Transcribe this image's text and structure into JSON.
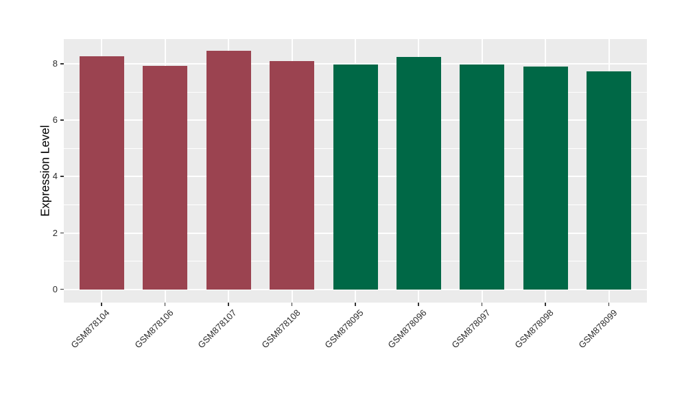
{
  "chart_data": {
    "type": "bar",
    "title": "",
    "categories": [
      "GSM878104",
      "GSM878106",
      "GSM878107",
      "GSM878108",
      "GSM878095",
      "GSM878096",
      "GSM878097",
      "GSM878098",
      "GSM878099"
    ],
    "values": [
      8.26,
      7.94,
      8.46,
      8.11,
      7.97,
      8.24,
      7.97,
      7.91,
      7.73
    ],
    "bar_colors": [
      "#9B4350",
      "#9B4350",
      "#9B4350",
      "#9B4350",
      "#006846",
      "#006846",
      "#006846",
      "#006846",
      "#006846"
    ],
    "group_colors": {
      "maroon_group": "#9B4350",
      "green_group": "#006846"
    },
    "xlabel": "",
    "ylabel": "Expression Level",
    "yticks": [
      0,
      2,
      4,
      6,
      8
    ],
    "yticks_minor": [
      1,
      3,
      5,
      7
    ],
    "ylim": [
      -0.47,
      8.88
    ],
    "grid": true,
    "legend": false,
    "panel_bg": "#EBEBEB",
    "grid_color": "#FFFFFF",
    "axis_text_color": "#2b2b2b",
    "tick_color": "#333333"
  }
}
